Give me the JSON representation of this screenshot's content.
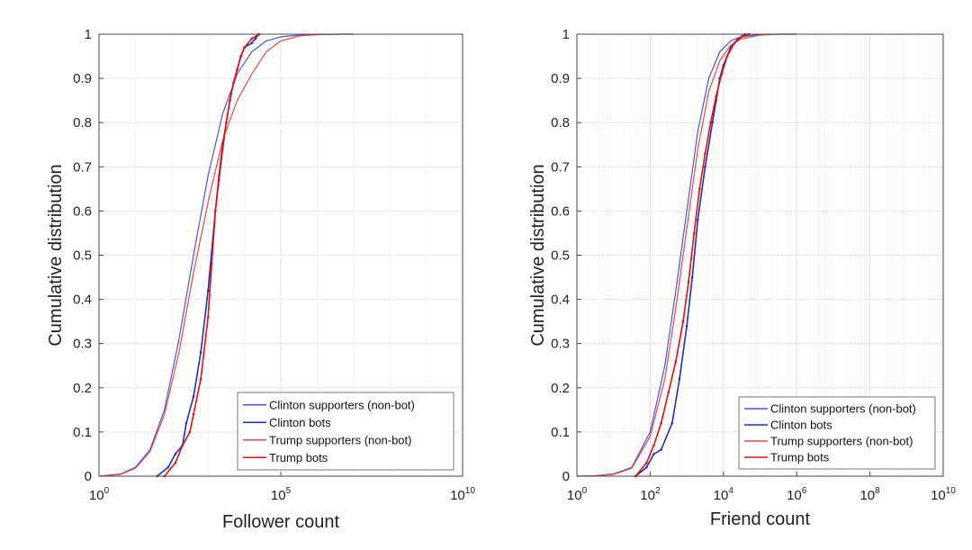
{
  "chart_data": [
    {
      "id": "left",
      "type": "line",
      "xscale": "log",
      "xlabel": "Follower count",
      "ylabel": "Cumulative distribution",
      "xlim_log10": [
        0,
        10
      ],
      "ylim": [
        0,
        1
      ],
      "grid": true,
      "minor_grid": false,
      "legend_position": "bottom-right",
      "xtick_labels": [
        {
          "base": "10",
          "exp": "0"
        },
        {
          "base": "10",
          "exp": "5"
        },
        {
          "base": "10",
          "exp": "10"
        }
      ],
      "ytick_labels": [
        "0",
        "0.1",
        "0.2",
        "0.3",
        "0.4",
        "0.5",
        "0.6",
        "0.7",
        "0.8",
        "0.9",
        "1"
      ],
      "series": [
        {
          "name": "Clinton supporters (non-bot)",
          "color": "#4a55e0",
          "width": 1.2,
          "log10_x": [
            0,
            0.6,
            1.0,
            1.4,
            1.8,
            2.2,
            2.6,
            3.0,
            3.4,
            3.8,
            4.2,
            4.6,
            5.0,
            5.5,
            6.0,
            6.6,
            7.0
          ],
          "y": [
            0,
            0.005,
            0.02,
            0.06,
            0.15,
            0.31,
            0.5,
            0.68,
            0.82,
            0.91,
            0.96,
            0.985,
            0.994,
            0.998,
            0.999,
            1.0,
            1.0
          ]
        },
        {
          "name": "Clinton bots",
          "color": "#1f2fb8",
          "width": 1.6,
          "dotted": true,
          "log10_x": [
            1.6,
            1.9,
            2.1,
            2.3,
            2.4,
            2.6,
            2.8,
            3.0,
            3.2,
            3.3,
            3.4,
            3.5,
            3.6,
            3.7,
            3.8,
            3.9,
            4.0,
            4.2,
            4.3,
            4.4
          ],
          "y": [
            0,
            0.02,
            0.05,
            0.07,
            0.12,
            0.18,
            0.28,
            0.42,
            0.6,
            0.67,
            0.74,
            0.8,
            0.85,
            0.89,
            0.92,
            0.95,
            0.97,
            0.98,
            0.99,
            1.0
          ]
        },
        {
          "name": "Trump supporters (non-bot)",
          "color": "#e04a4a",
          "width": 1.2,
          "log10_x": [
            0,
            0.6,
            1.0,
            1.4,
            1.8,
            2.2,
            2.6,
            3.0,
            3.4,
            3.8,
            4.2,
            4.6,
            5.0,
            5.5,
            6.0,
            6.6,
            7.0
          ],
          "y": [
            0,
            0.004,
            0.018,
            0.055,
            0.14,
            0.28,
            0.46,
            0.62,
            0.76,
            0.85,
            0.91,
            0.96,
            0.985,
            0.996,
            0.999,
            1.0,
            1.0
          ]
        },
        {
          "name": "Trump bots",
          "color": "#e01010",
          "width": 1.6,
          "dotted": true,
          "log10_x": [
            1.8,
            2.1,
            2.3,
            2.5,
            2.6,
            2.8,
            3.0,
            3.1,
            3.2,
            3.3,
            3.4,
            3.5,
            3.6,
            3.7,
            3.8,
            3.9,
            4.0,
            4.2,
            4.4
          ],
          "y": [
            0,
            0.03,
            0.07,
            0.1,
            0.14,
            0.22,
            0.36,
            0.48,
            0.6,
            0.68,
            0.75,
            0.8,
            0.85,
            0.89,
            0.92,
            0.95,
            0.97,
            0.99,
            1.0
          ]
        }
      ],
      "legend": [
        "Clinton supporters (non-bot)",
        "Clinton bots",
        "Trump supporters (non-bot)",
        "Trump bots"
      ]
    },
    {
      "id": "right",
      "type": "line",
      "xscale": "log",
      "xlabel": "Friend count",
      "ylabel": "Cumulative distribution",
      "xlim_log10": [
        0,
        10
      ],
      "ylim": [
        0,
        1
      ],
      "grid": true,
      "minor_grid": true,
      "legend_position": "bottom-right",
      "xtick_labels": [
        {
          "base": "10",
          "exp": "0"
        },
        {
          "base": "10",
          "exp": "2"
        },
        {
          "base": "10",
          "exp": "4"
        },
        {
          "base": "10",
          "exp": "6"
        },
        {
          "base": "10",
          "exp": "8"
        },
        {
          "base": "10",
          "exp": "10"
        }
      ],
      "ytick_labels": [
        "0",
        "0.1",
        "0.2",
        "0.3",
        "0.4",
        "0.5",
        "0.6",
        "0.7",
        "0.8",
        "0.9",
        "1"
      ],
      "series": [
        {
          "name": "Clinton supporters (non-bot)",
          "color": "#4a55e0",
          "width": 1.2,
          "log10_x": [
            0,
            0.5,
            1.0,
            1.5,
            2.0,
            2.4,
            2.7,
            3.0,
            3.3,
            3.6,
            3.9,
            4.2,
            4.5,
            5.0,
            5.5,
            6.0
          ],
          "y": [
            0,
            0.001,
            0.005,
            0.02,
            0.1,
            0.25,
            0.42,
            0.6,
            0.78,
            0.9,
            0.96,
            0.985,
            0.995,
            0.999,
            1.0,
            1.0
          ]
        },
        {
          "name": "Clinton bots",
          "color": "#1f2fb8",
          "width": 1.6,
          "dotted": true,
          "log10_x": [
            1.6,
            1.9,
            2.1,
            2.3,
            2.6,
            2.8,
            3.0,
            3.15,
            3.3,
            3.5,
            3.7,
            3.8,
            3.9,
            4.0,
            4.2,
            4.4,
            4.6
          ],
          "y": [
            0,
            0.02,
            0.05,
            0.06,
            0.12,
            0.22,
            0.34,
            0.45,
            0.58,
            0.7,
            0.8,
            0.85,
            0.9,
            0.93,
            0.97,
            0.99,
            1.0
          ]
        },
        {
          "name": "Trump supporters (non-bot)",
          "color": "#e04a4a",
          "width": 1.2,
          "log10_x": [
            0,
            0.5,
            1.0,
            1.5,
            2.0,
            2.4,
            2.7,
            3.0,
            3.3,
            3.6,
            3.9,
            4.2,
            4.5,
            5.0,
            5.5,
            6.0
          ],
          "y": [
            0,
            0.001,
            0.004,
            0.018,
            0.09,
            0.22,
            0.38,
            0.56,
            0.74,
            0.87,
            0.94,
            0.975,
            0.99,
            0.998,
            1.0,
            1.0
          ]
        },
        {
          "name": "Trump bots",
          "color": "#e01010",
          "width": 1.6,
          "dotted": true,
          "log10_x": [
            1.6,
            1.9,
            2.1,
            2.3,
            2.5,
            2.7,
            2.9,
            3.05,
            3.2,
            3.35,
            3.5,
            3.65,
            3.8,
            3.95,
            4.1,
            4.3,
            4.5,
            4.7
          ],
          "y": [
            0,
            0.03,
            0.07,
            0.12,
            0.19,
            0.26,
            0.35,
            0.44,
            0.55,
            0.65,
            0.73,
            0.8,
            0.86,
            0.91,
            0.95,
            0.98,
            0.995,
            1.0
          ]
        }
      ],
      "legend": [
        "Clinton supporters (non-bot)",
        "Clinton bots",
        "Trump supporters (non-bot)",
        "Trump bots"
      ]
    }
  ]
}
